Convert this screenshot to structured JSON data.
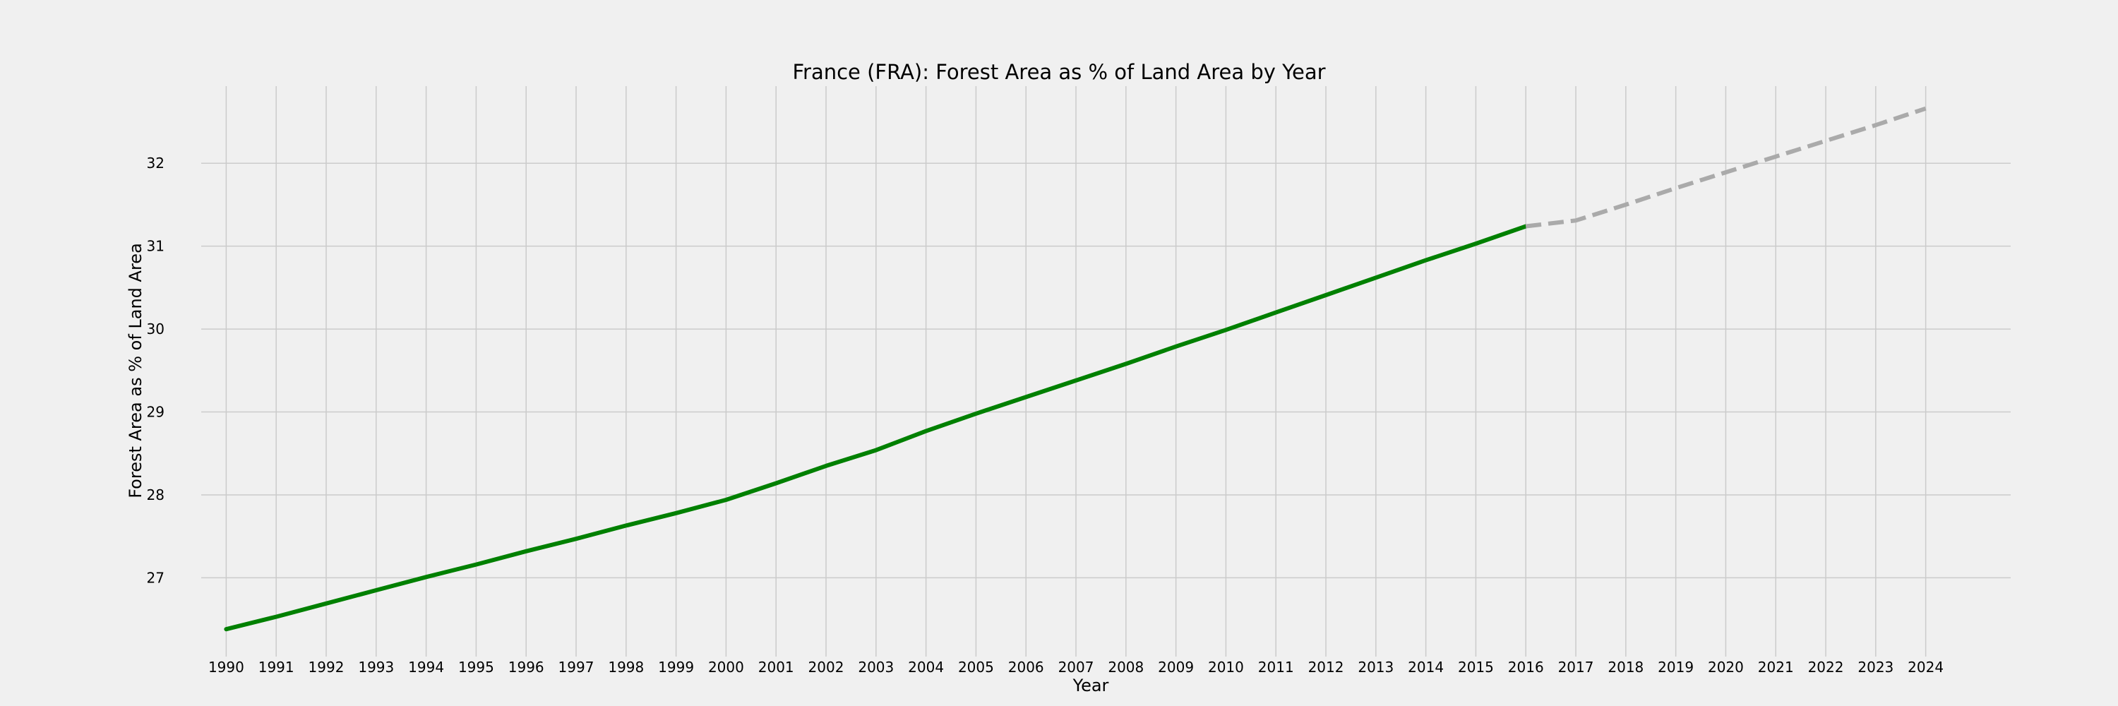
{
  "chart_data": {
    "type": "line",
    "title": "France (FRA): Forest Area as % of Land Area by Year",
    "xlabel": "Year",
    "ylabel": "Forest Area as % of Land Area",
    "x_ticks": [
      "1990",
      "1991",
      "1992",
      "1993",
      "1994",
      "1995",
      "1996",
      "1997",
      "1998",
      "1999",
      "2000",
      "2001",
      "2002",
      "2003",
      "2004",
      "2005",
      "2006",
      "2007",
      "2008",
      "2009",
      "2010",
      "2011",
      "2012",
      "2013",
      "2014",
      "2015",
      "2016",
      "2017",
      "2018",
      "2019",
      "2020",
      "2021",
      "2022",
      "2023",
      "2024"
    ],
    "y_ticks": [
      "27",
      "28",
      "29",
      "30",
      "31",
      "32"
    ],
    "ylim": [
      26.05,
      32.93
    ],
    "xlim": [
      1989.5,
      2025.7
    ],
    "grid": true,
    "series": [
      {
        "style": "solid",
        "color": "#008000",
        "x": [
          1990,
          1991,
          1992,
          1993,
          1994,
          1995,
          1996,
          1997,
          1998,
          1999,
          2000,
          2001,
          2002,
          2003,
          2004,
          2005,
          2006,
          2007,
          2008,
          2009,
          2010,
          2011,
          2012,
          2013,
          2014,
          2015,
          2016
        ],
        "y": [
          26.38,
          26.53,
          26.69,
          26.85,
          27.01,
          27.16,
          27.32,
          27.47,
          27.63,
          27.78,
          27.94,
          28.14,
          28.35,
          28.54,
          28.77,
          28.98,
          29.18,
          29.38,
          29.58,
          29.79,
          29.99,
          30.2,
          30.41,
          30.62,
          30.83,
          31.03,
          31.24
        ]
      },
      {
        "style": "dashed",
        "color": "#aaaaaa",
        "x": [
          2016,
          2017,
          2018,
          2019,
          2020,
          2021,
          2022,
          2023,
          2024
        ],
        "y": [
          31.24,
          31.31,
          31.5,
          31.7,
          31.89,
          32.08,
          32.27,
          32.46,
          32.66
        ]
      }
    ]
  }
}
